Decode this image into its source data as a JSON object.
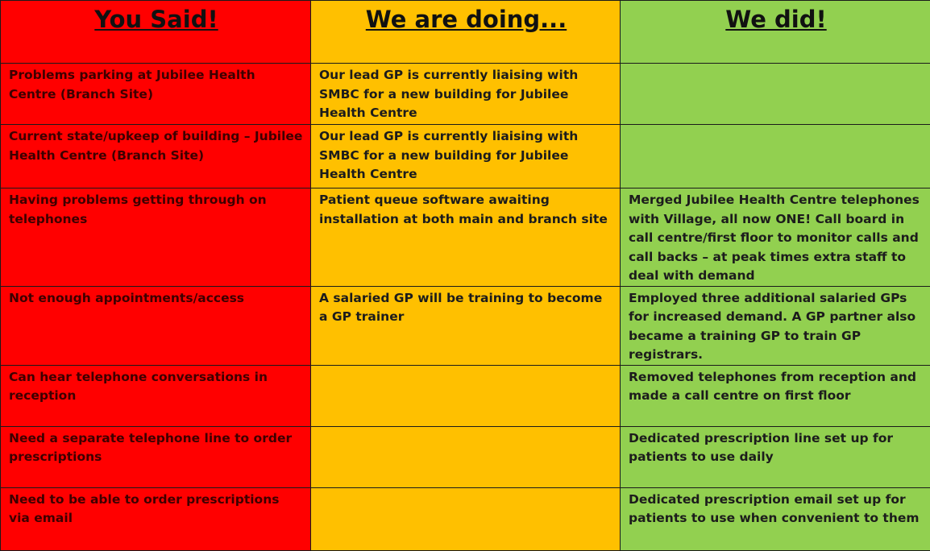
{
  "colors": {
    "you_said": "#FF0000",
    "we_are_doing": "#FFC000",
    "we_did": "#92D050"
  },
  "headers": [
    "You Said!",
    "We are doing...",
    "We did!"
  ],
  "rows": [
    [
      "Problems parking at Jubilee Health Centre (Branch Site)",
      "Our lead GP is currently liaising with SMBC for a new building for Jubilee Health Centre",
      ""
    ],
    [
      "Current state/upkeep of building – Jubilee Health Centre (Branch Site)",
      "Our lead GP is currently liaising with SMBC for a new building for Jubilee Health Centre",
      ""
    ],
    [
      "Having problems getting through on telephones",
      "Patient queue software awaiting installation at both main and branch site",
      "Merged  Jubilee Health Centre telephones with Village, all now ONE! Call board in call centre/first floor to monitor calls and call backs – at peak times extra staff to deal with demand"
    ],
    [
      "Not enough appointments/access",
      "A salaried GP will be training to become a GP trainer",
      "Employed three additional salaried GPs for increased demand. A GP partner also became a training GP to train GP registrars."
    ],
    [
      "Can hear telephone conversations in reception",
      "",
      "Removed telephones from reception and made a call centre on first floor"
    ],
    [
      "Need a separate telephone line to order prescriptions",
      "",
      "Dedicated prescription line set up for patients to use daily"
    ],
    [
      "Need to be able to order prescriptions via email",
      "",
      "Dedicated prescription email set up for patients to use when convenient to them"
    ]
  ]
}
